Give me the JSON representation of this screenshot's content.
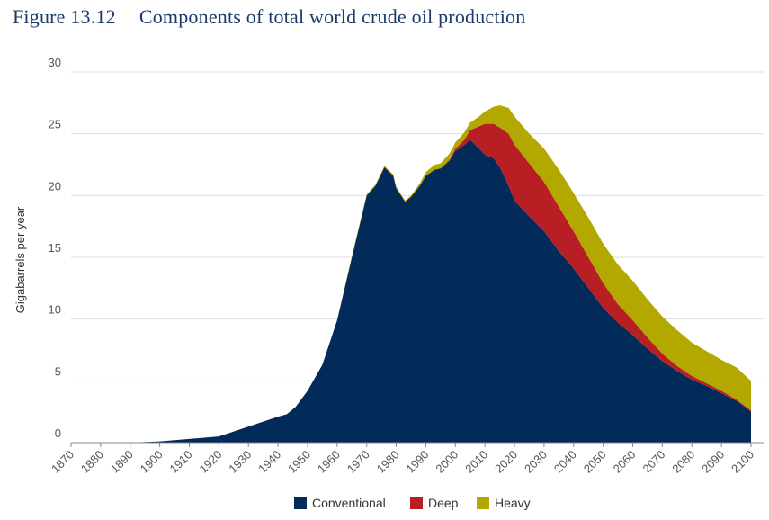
{
  "figure": {
    "number": "Figure 13.12",
    "title": "Components of total world crude oil production"
  },
  "colors": {
    "Conventional": "#022b5a",
    "Deep": "#b71f24",
    "Heavy": "#b3a800",
    "grid": "#dddddd",
    "axis": "#888888"
  },
  "chart_data": {
    "type": "area",
    "stacked": true,
    "ylabel": "Gigabarrels per year",
    "xlabel": "",
    "xlim": [
      1870,
      2100
    ],
    "ylim": [
      0,
      30
    ],
    "yticks": [
      0,
      5,
      10,
      15,
      20,
      25,
      30
    ],
    "xticks": [
      1870,
      1880,
      1890,
      1900,
      1910,
      1920,
      1930,
      1940,
      1950,
      1960,
      1970,
      1980,
      1990,
      2000,
      2010,
      2020,
      2030,
      2040,
      2050,
      2060,
      2070,
      2080,
      2090,
      2100
    ],
    "grid": true,
    "legend_position": "bottom-center",
    "x": [
      1870,
      1890,
      1900,
      1905,
      1910,
      1915,
      1920,
      1925,
      1930,
      1935,
      1940,
      1943,
      1946,
      1950,
      1955,
      1960,
      1965,
      1970,
      1973,
      1976,
      1979,
      1980,
      1983,
      1985,
      1988,
      1990,
      1993,
      1995,
      1998,
      2000,
      2003,
      2005,
      2008,
      2010,
      2013,
      2015,
      2018,
      2020,
      2025,
      2030,
      2035,
      2040,
      2045,
      2050,
      2055,
      2060,
      2065,
      2070,
      2075,
      2080,
      2085,
      2090,
      2095,
      2100
    ],
    "series": [
      {
        "name": "Conventional",
        "values": [
          0,
          0,
          0.1,
          0.2,
          0.3,
          0.4,
          0.5,
          0.9,
          1.3,
          1.7,
          2.1,
          2.3,
          2.9,
          4.2,
          6.3,
          9.9,
          15.0,
          20.0,
          20.8,
          22.3,
          21.6,
          20.6,
          19.5,
          19.9,
          20.8,
          21.6,
          22.1,
          22.2,
          22.8,
          23.6,
          24.1,
          24.5,
          23.8,
          23.3,
          23.0,
          22.3,
          20.8,
          19.6,
          18.3,
          17.1,
          15.5,
          14.1,
          12.5,
          10.9,
          9.7,
          8.7,
          7.6,
          6.6,
          5.8,
          5.1,
          4.6,
          4.0,
          3.4,
          2.5
        ]
      },
      {
        "name": "Deep",
        "values": [
          0,
          0,
          0,
          0,
          0,
          0,
          0,
          0,
          0,
          0,
          0,
          0,
          0,
          0,
          0,
          0,
          0,
          0,
          0,
          0,
          0,
          0,
          0,
          0,
          0,
          0,
          0,
          0,
          0.1,
          0.2,
          0.4,
          0.8,
          1.8,
          2.5,
          2.8,
          3.2,
          4.2,
          4.5,
          4.3,
          4.0,
          3.6,
          3.0,
          2.5,
          2.0,
          1.5,
          1.2,
          0.9,
          0.6,
          0.4,
          0.3,
          0.2,
          0.2,
          0.1,
          0.1
        ]
      },
      {
        "name": "Heavy",
        "values": [
          0,
          0,
          0,
          0,
          0,
          0,
          0,
          0,
          0,
          0,
          0,
          0,
          0,
          0,
          0,
          0,
          0.1,
          0.1,
          0.1,
          0.1,
          0.1,
          0.1,
          0.1,
          0.1,
          0.2,
          0.3,
          0.4,
          0.4,
          0.5,
          0.5,
          0.6,
          0.6,
          0.8,
          1.0,
          1.4,
          1.8,
          2.1,
          2.3,
          2.4,
          2.7,
          3.0,
          3.1,
          3.2,
          3.2,
          3.2,
          3.2,
          3.1,
          3.0,
          2.9,
          2.7,
          2.6,
          2.5,
          2.6,
          2.4
        ]
      }
    ]
  }
}
